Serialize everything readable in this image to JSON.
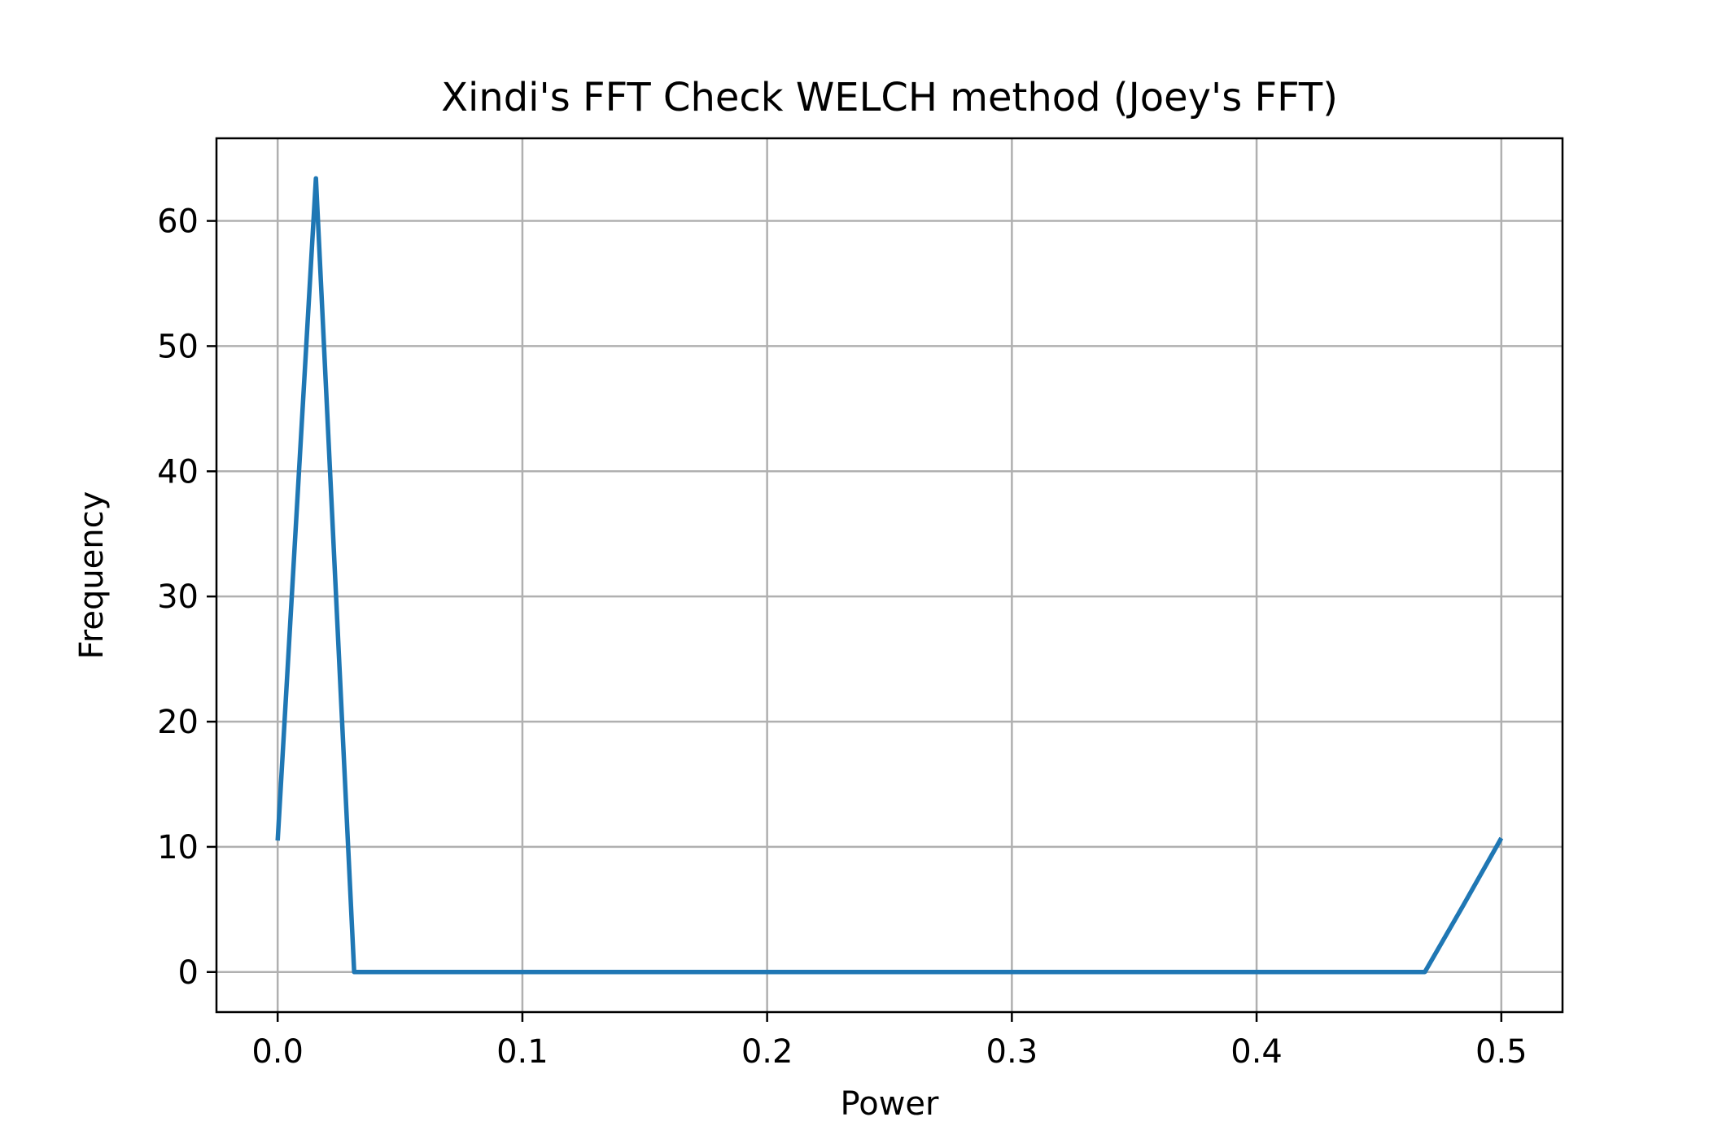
{
  "chart_data": {
    "type": "line",
    "title": "Xindi's FFT Check WELCH method (Joey's FFT)",
    "xlabel": "Power",
    "ylabel": "Frequency",
    "xlim": [
      -0.025,
      0.525
    ],
    "ylim": [
      -3.2,
      66.6
    ],
    "xticks": [
      0.0,
      0.1,
      0.2,
      0.3,
      0.4,
      0.5
    ],
    "xtick_labels": [
      "0.0",
      "0.1",
      "0.2",
      "0.3",
      "0.4",
      "0.5"
    ],
    "yticks": [
      0,
      10,
      20,
      30,
      40,
      50,
      60
    ],
    "ytick_labels": [
      "0",
      "10",
      "20",
      "30",
      "40",
      "50",
      "60"
    ],
    "grid": true,
    "series": [
      {
        "color": "#1f77b4",
        "x": [
          0.0,
          0.015625,
          0.03125,
          0.046875,
          0.0625,
          0.078125,
          0.09375,
          0.109375,
          0.125,
          0.140625,
          0.15625,
          0.171875,
          0.1875,
          0.203125,
          0.21875,
          0.234375,
          0.25,
          0.265625,
          0.28125,
          0.296875,
          0.3125,
          0.328125,
          0.34375,
          0.359375,
          0.375,
          0.390625,
          0.40625,
          0.421875,
          0.4375,
          0.453125,
          0.46875,
          0.484375,
          0.5
        ],
        "y": [
          10.5,
          63.4,
          0,
          0,
          0,
          0,
          0,
          0,
          0,
          0,
          0,
          0,
          0,
          0,
          0,
          0,
          0,
          0,
          0,
          0,
          0,
          0,
          0,
          0,
          0,
          0,
          0,
          0,
          0,
          0,
          0,
          5.3,
          10.7
        ]
      }
    ]
  }
}
